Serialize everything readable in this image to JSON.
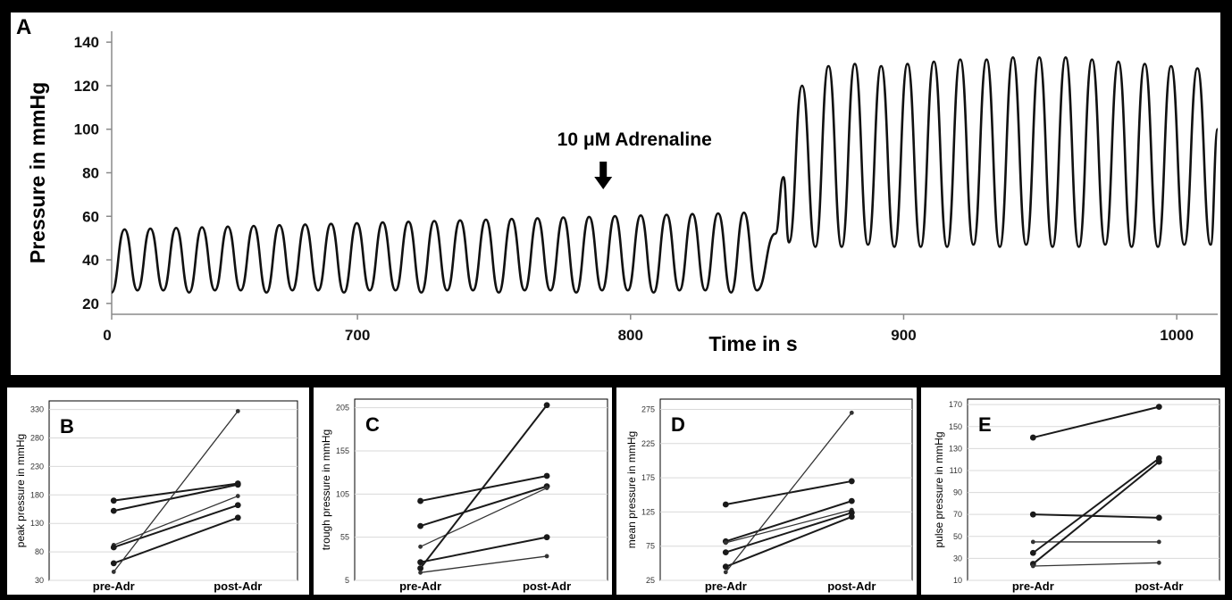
{
  "figure": {
    "background": "#000000",
    "panel_background": "#ffffff",
    "trace_color": "#111111",
    "grid_color": "#d9d9d9"
  },
  "chart_data": [
    {
      "panel": "A",
      "type": "line",
      "title": "",
      "xlabel": "Time in s",
      "ylabel": "Pressure in mmHg",
      "xlim": [
        610,
        1015
      ],
      "ylim": [
        15,
        145
      ],
      "x_ticks": [
        "0",
        "700",
        "800",
        "900",
        "1000"
      ],
      "y_ticks": [
        "20",
        "40",
        "60",
        "80",
        "100",
        "120",
        "140"
      ],
      "annotation": "10 μM Adrenaline",
      "annotation_x": 790,
      "baseline_phase": {
        "start": 610,
        "end": 850,
        "period": 9.45,
        "trough": 26,
        "peak_start": 54,
        "peak_end": 62
      },
      "transition_peaks": [
        {
          "x": 856,
          "y": 78
        }
      ],
      "adrenaline_phase": {
        "start": 858,
        "end": 1015,
        "period": 9.65,
        "peaks": [
          120,
          129,
          130,
          129,
          130,
          131,
          132,
          132,
          133,
          133,
          133,
          132,
          131,
          130,
          129,
          128,
          127,
          126
        ],
        "troughs": [
          48,
          46,
          46,
          47,
          46,
          46,
          46,
          47,
          46,
          47,
          46,
          46,
          47,
          46,
          46,
          47,
          47,
          48,
          50
        ]
      }
    },
    {
      "panel": "B",
      "type": "line",
      "ylabel": "peak pressure in mmHg",
      "categories": [
        "pre-Adr",
        "post-Adr"
      ],
      "ylim": [
        30,
        345
      ],
      "y_ticks": [
        30,
        80,
        130,
        180,
        230,
        280,
        330
      ],
      "series": [
        {
          "values": [
            170,
            200
          ]
        },
        {
          "values": [
            152,
            198
          ]
        },
        {
          "values": [
            92,
            178
          ]
        },
        {
          "values": [
            88,
            162
          ]
        },
        {
          "values": [
            60,
            140
          ]
        },
        {
          "values": [
            45,
            327
          ]
        }
      ]
    },
    {
      "panel": "C",
      "type": "line",
      "ylabel": "trough pressure in mmHg",
      "categories": [
        "pre-Adr",
        "post-Adr"
      ],
      "ylim": [
        5,
        215
      ],
      "y_ticks": [
        5,
        55,
        105,
        155,
        205
      ],
      "series": [
        {
          "values": [
            97,
            126
          ]
        },
        {
          "values": [
            68,
            114
          ]
        },
        {
          "values": [
            44,
            112
          ]
        },
        {
          "values": [
            26,
            55
          ]
        },
        {
          "values": [
            19,
            208
          ]
        },
        {
          "values": [
            14,
            33
          ]
        }
      ]
    },
    {
      "panel": "D",
      "type": "line",
      "ylabel": "mean pressure in mmHg",
      "categories": [
        "pre-Adr",
        "post-Adr"
      ],
      "ylim": [
        25,
        290
      ],
      "y_ticks": [
        25,
        75,
        125,
        175,
        225,
        275
      ],
      "series": [
        {
          "values": [
            136,
            170
          ]
        },
        {
          "values": [
            82,
            141
          ]
        },
        {
          "values": [
            80,
            128
          ]
        },
        {
          "values": [
            66,
            124
          ]
        },
        {
          "values": [
            45,
            118
          ]
        },
        {
          "values": [
            37,
            270
          ]
        }
      ]
    },
    {
      "panel": "E",
      "type": "line",
      "ylabel": "pulse pressure in mmHg",
      "categories": [
        "pre-Adr",
        "post-Adr"
      ],
      "ylim": [
        10,
        175
      ],
      "y_ticks": [
        10,
        30,
        50,
        70,
        90,
        110,
        130,
        150,
        170
      ],
      "series": [
        {
          "values": [
            140,
            168
          ]
        },
        {
          "values": [
            70,
            67
          ]
        },
        {
          "values": [
            45,
            45
          ]
        },
        {
          "values": [
            35,
            121
          ]
        },
        {
          "values": [
            25,
            118
          ]
        },
        {
          "values": [
            23,
            26
          ]
        }
      ]
    }
  ]
}
